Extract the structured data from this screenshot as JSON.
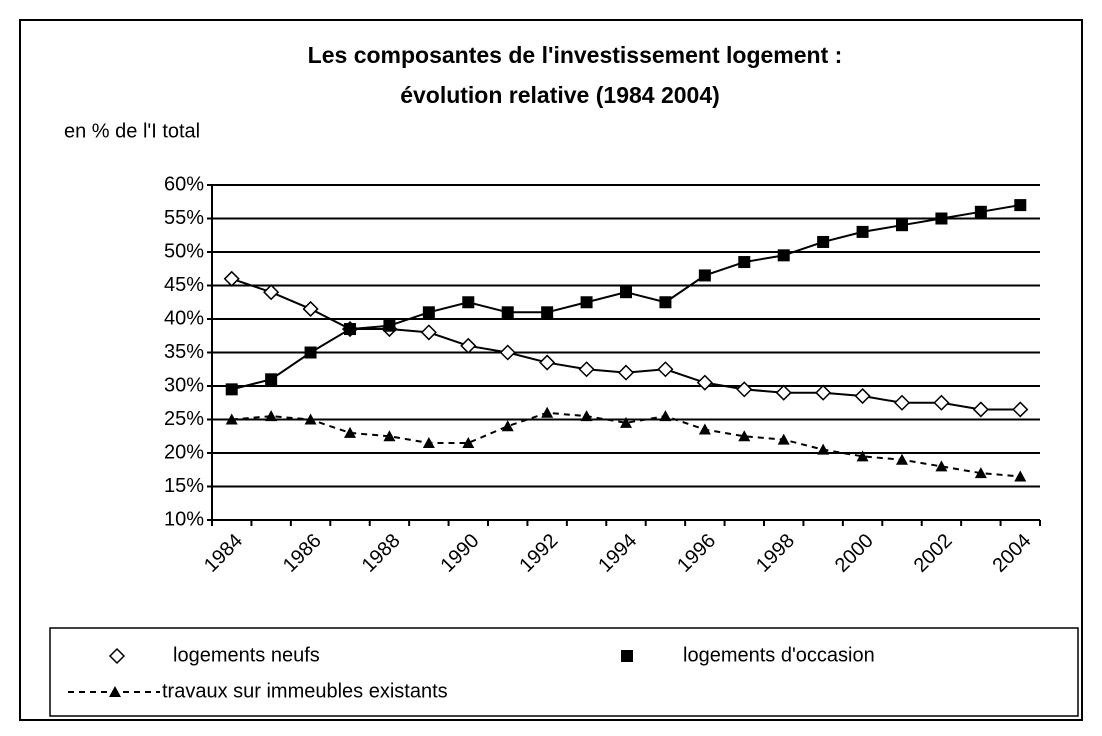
{
  "chart_data": {
    "type": "line",
    "title": [
      "Les composantes de l'investissement logement :",
      "évolution relative (1984 2004)"
    ],
    "subtitle": "en % de l'I total",
    "categories": [
      "1984",
      null,
      "1986",
      null,
      "1988",
      null,
      "1990",
      null,
      "1992",
      null,
      "1994",
      null,
      "1996",
      null,
      "1998",
      null,
      "2000",
      null,
      "2002",
      null,
      "2004"
    ],
    "series": [
      {
        "name": "logements neufs",
        "color": "#000000",
        "marker": "diamond",
        "line_style": "solid",
        "values": [
          46,
          44,
          41.5,
          38.5,
          38.5,
          38,
          36,
          35,
          33.5,
          32.5,
          32,
          32.5,
          30.5,
          29.5,
          29,
          29,
          28.5,
          27.5,
          27.5,
          26.5,
          26.5
        ]
      },
      {
        "name": "logements d'occasion",
        "color": "#000000",
        "marker": "square",
        "line_style": "solid",
        "values": [
          29.5,
          31,
          35,
          38.5,
          39,
          41,
          42.5,
          41,
          41,
          42.5,
          44,
          42.5,
          46.5,
          48.5,
          49.5,
          51.5,
          53,
          54,
          55,
          56,
          57
        ]
      },
      {
        "name": "travaux sur immeubles existants",
        "color": "#000000",
        "marker": "triangle",
        "line_style": "dashed",
        "values": [
          25,
          25.5,
          25,
          23,
          22.5,
          21.5,
          21.5,
          24,
          26,
          25.5,
          24.5,
          25.5,
          23.5,
          22.5,
          22,
          20.5,
          19.5,
          19,
          18,
          17,
          16.5
        ]
      }
    ],
    "ylim": [
      10,
      60
    ],
    "yticks": [
      {
        "value": 10,
        "label": "10%"
      },
      {
        "value": 15,
        "label": "15%"
      },
      {
        "value": 20,
        "label": "20%"
      },
      {
        "value": 25,
        "label": "25%"
      },
      {
        "value": 30,
        "label": "30%"
      },
      {
        "value": 35,
        "label": "35%"
      },
      {
        "value": 40,
        "label": "40%"
      },
      {
        "value": 45,
        "label": "45%"
      },
      {
        "value": 50,
        "label": "50%"
      },
      {
        "value": 55,
        "label": "55%"
      },
      {
        "value": 60,
        "label": "60%"
      }
    ],
    "grid": true,
    "legend": "bottom"
  }
}
